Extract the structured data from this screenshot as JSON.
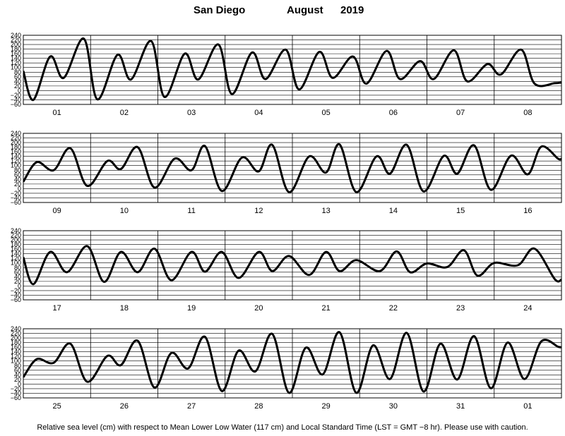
{
  "title": {
    "location": "San Diego",
    "month": "August",
    "year": "2019"
  },
  "footnote": "Relative sea level (cm) with respect to Mean Lower Low Water (117 cm) and Local Standard Time (LST = GMT −8 hr). Please use with caution.",
  "chart_data": {
    "type": "line",
    "title": "San Diego August 2019",
    "ylabel": "",
    "xlabel": "",
    "ylim": [
      -60,
      240
    ],
    "yticks": [
      -60,
      -40,
      -20,
      0,
      20,
      40,
      60,
      80,
      100,
      120,
      140,
      160,
      180,
      200,
      220,
      240
    ],
    "grid": true,
    "line_color": "#000000",
    "panels": [
      {
        "days": [
          "01",
          "02",
          "03",
          "04",
          "05",
          "06",
          "07",
          "08"
        ],
        "series": [
          {
            "x": [
              0,
              0.15,
              0.4,
              0.6,
              0.9,
              1.1,
              1.4,
              1.6,
              1.9,
              2.1,
              2.4,
              2.6,
              2.9,
              3.1,
              3.4,
              3.6,
              3.9,
              4.1,
              4.4,
              4.6,
              4.9,
              5.1,
              5.4,
              5.6,
              5.9,
              6.1,
              6.4,
              6.6,
              6.9,
              7.1,
              7.4,
              7.6,
              7.9,
              8.0
            ],
            "y": [
              85,
              -40,
              148,
              55,
              225,
              -38,
              155,
              48,
              215,
              -28,
              160,
              48,
              200,
              -15,
              165,
              50,
              178,
              5,
              168,
              55,
              148,
              30,
              172,
              50,
              128,
              50,
              175,
              40,
              115,
              70,
              178,
              30,
              32,
              35
            ]
          }
        ]
      },
      {
        "days": [
          "09",
          "10",
          "11",
          "12",
          "13",
          "14",
          "15",
          "16"
        ],
        "series": [
          {
            "x": [
              0,
              0.2,
              0.45,
              0.7,
              0.95,
              1.25,
              1.45,
              1.7,
              1.95,
              2.25,
              2.5,
              2.7,
              2.95,
              3.25,
              3.5,
              3.7,
              3.95,
              4.25,
              4.5,
              4.7,
              4.95,
              5.25,
              5.45,
              5.7,
              5.95,
              6.25,
              6.45,
              6.7,
              6.95,
              7.25,
              7.5,
              7.7,
              7.95,
              8.0
            ],
            "y": [
              30,
              115,
              80,
              175,
              12,
              120,
              85,
              180,
              5,
              130,
              80,
              185,
              -10,
              135,
              75,
              190,
              -15,
              140,
              70,
              192,
              -15,
              140,
              65,
              190,
              -12,
              142,
              65,
              188,
              -5,
              143,
              62,
              182,
              130,
              130
            ]
          }
        ]
      },
      {
        "days": [
          "17",
          "18",
          "19",
          "20",
          "21",
          "22",
          "23",
          "24"
        ],
        "series": [
          {
            "x": [
              0,
              0.15,
              0.4,
              0.65,
              0.95,
              1.2,
              1.45,
              1.7,
              1.95,
              2.2,
              2.5,
              2.7,
              2.95,
              3.2,
              3.5,
              3.7,
              3.95,
              4.25,
              4.5,
              4.7,
              4.95,
              5.3,
              5.55,
              5.75,
              6.0,
              6.3,
              6.55,
              6.75,
              7.0,
              7.35,
              7.6,
              7.9,
              8.0
            ],
            "y": [
              125,
              8,
              148,
              60,
              173,
              18,
              148,
              60,
              162,
              25,
              148,
              62,
              148,
              35,
              148,
              65,
              130,
              48,
              148,
              65,
              112,
              65,
              150,
              60,
              98,
              82,
              155,
              45,
              100,
              90,
              162,
              30,
              28
            ]
          }
        ]
      },
      {
        "days": [
          "25",
          "26",
          "27",
          "28",
          "29",
          "30",
          "31",
          "01"
        ],
        "series": [
          {
            "x": [
              0,
              0.2,
              0.45,
              0.7,
              0.95,
              1.25,
              1.45,
              1.7,
              1.95,
              2.2,
              2.45,
              2.7,
              2.95,
              3.2,
              3.45,
              3.7,
              3.95,
              4.2,
              4.45,
              4.7,
              4.95,
              5.2,
              5.45,
              5.7,
              5.95,
              6.2,
              6.45,
              6.7,
              6.95,
              7.2,
              7.45,
              7.7,
              7.95,
              8.0
            ],
            "y": [
              30,
              108,
              92,
              175,
              10,
              122,
              82,
              188,
              -15,
              135,
              68,
              205,
              -30,
              145,
              55,
              218,
              -38,
              158,
              42,
              225,
              -38,
              168,
              22,
              222,
              -32,
              175,
              20,
              208,
              -18,
              180,
              22,
              185,
              162,
              160
            ]
          }
        ]
      }
    ]
  }
}
